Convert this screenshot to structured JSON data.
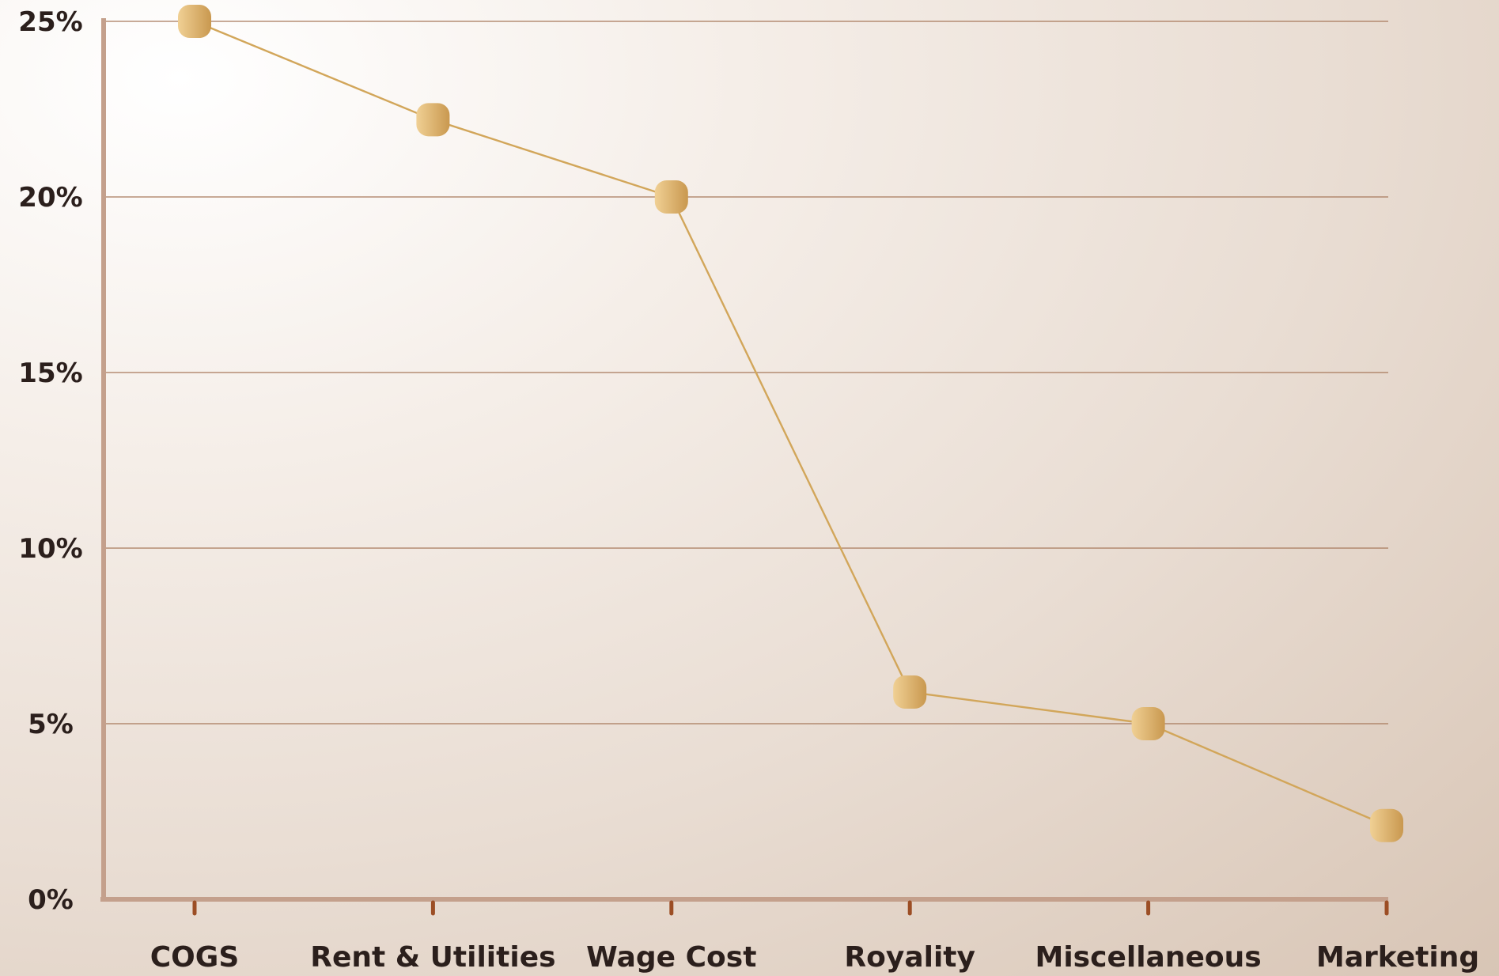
{
  "chart_data": {
    "type": "line",
    "title": "",
    "xlabel": "",
    "ylabel": "",
    "categories": [
      "COGS",
      "Rent & Utilities",
      "Wage Cost",
      "Royality",
      "Miscellaneous",
      "Marketing"
    ],
    "series": [
      {
        "values": [
          25,
          22.2,
          20,
          5.9,
          5,
          2.1
        ]
      }
    ],
    "ylim": [
      0,
      25
    ],
    "yticks": [
      0,
      5,
      10,
      15,
      20,
      25
    ],
    "ytick_labels": [
      "0%",
      "5%",
      "10%",
      "15%",
      "20%",
      "25%"
    ],
    "grid": true,
    "legend": "none",
    "colors": {
      "line": "#d2a65a",
      "marker_light": "#ecc98a",
      "marker_dark": "#c9984f",
      "axis": "#c4a08c",
      "grid": "#a87a5c",
      "tick": "#9c4e25",
      "text": "#2b1f1c"
    }
  }
}
